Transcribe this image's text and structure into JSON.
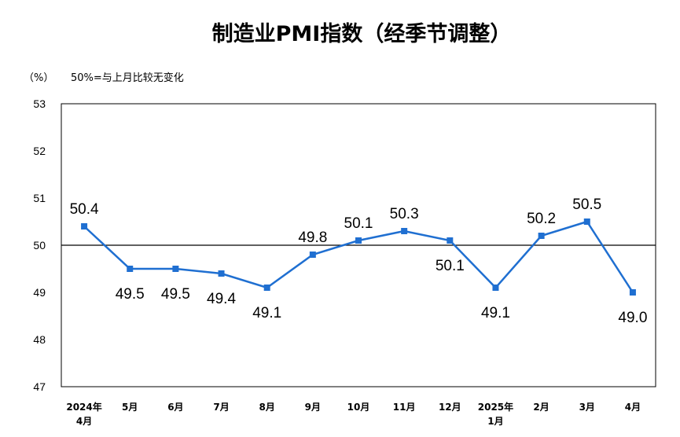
{
  "chart_data": {
    "type": "line",
    "title": "制造业PMI指数（经季节调整）",
    "unit_label": "（%）",
    "note": "50%=与上月比较无变化",
    "ylim": [
      47,
      53
    ],
    "yticks": [
      "47",
      "48",
      "49",
      "50",
      "51",
      "52",
      "53"
    ],
    "reference_line": 50,
    "categories": [
      [
        "2024年",
        "4月"
      ],
      [
        "5月"
      ],
      [
        "6月"
      ],
      [
        "7月"
      ],
      [
        "8月"
      ],
      [
        "9月"
      ],
      [
        "10月"
      ],
      [
        "11月"
      ],
      [
        "12月"
      ],
      [
        "2025年",
        "1月"
      ],
      [
        "2月"
      ],
      [
        "3月"
      ],
      [
        "4月"
      ]
    ],
    "values": [
      50.4,
      49.5,
      49.5,
      49.4,
      49.1,
      49.8,
      50.1,
      50.3,
      50.1,
      49.1,
      50.2,
      50.5,
      49.0
    ],
    "data_labels": [
      "50.4",
      "49.5",
      "49.5",
      "49.4",
      "49.1",
      "49.8",
      "50.1",
      "50.3",
      "50.1",
      "49.1",
      "50.2",
      "50.5",
      "49.0"
    ],
    "line_color": "#1f6fd1",
    "grid": false,
    "legend": "none"
  }
}
